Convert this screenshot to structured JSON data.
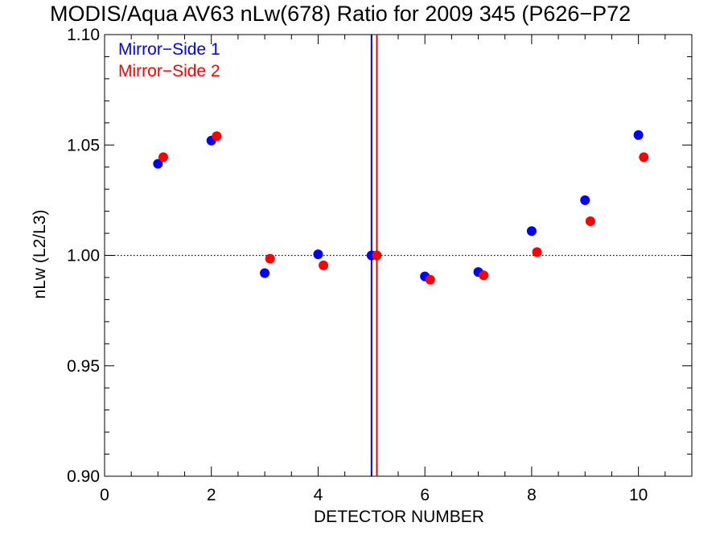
{
  "chart_data": {
    "type": "scatter",
    "title": "MODIS/Aqua AV63 nLw(678) Ratio for 2009 345 (P626−P72",
    "xlabel": "DETECTOR NUMBER",
    "ylabel": "nLw (L2/L3)",
    "xlim": [
      0,
      11
    ],
    "ylim": [
      0.9,
      1.1
    ],
    "xticks": [
      0,
      2,
      4,
      6,
      8,
      10
    ],
    "xtick_labels": [
      "0",
      "2",
      "4",
      "6",
      "8",
      "10"
    ],
    "yticks": [
      0.9,
      0.95,
      1.0,
      1.05,
      1.1
    ],
    "ytick_labels": [
      "0.90",
      "0.95",
      "1.00",
      "1.05",
      "1.10"
    ],
    "reference_line": {
      "y": 1.0,
      "style": "dotted",
      "color": "#000000"
    },
    "vertical_lines": [
      {
        "x": 5.0,
        "color": "#0000ff"
      },
      {
        "x": 5.1,
        "color": "#ff0000"
      }
    ],
    "legend_position": "top-left",
    "series": [
      {
        "name": "Mirror−Side 1",
        "color": "#0000ff",
        "x": [
          1,
          2,
          3,
          4,
          5,
          6,
          7,
          8,
          9,
          10
        ],
        "y": [
          1.0415,
          1.052,
          0.992,
          1.0005,
          1.0,
          0.9905,
          0.9925,
          1.011,
          1.025,
          1.0545
        ]
      },
      {
        "name": "Mirror−Side 2",
        "color": "#ff0000",
        "x": [
          1.1,
          2.1,
          3.1,
          4.1,
          5.1,
          6.1,
          7.1,
          8.1,
          9.1,
          10.1
        ],
        "y": [
          1.0445,
          1.054,
          0.9985,
          0.9955,
          1.0,
          0.989,
          0.991,
          1.0015,
          1.0155,
          1.0445
        ]
      }
    ]
  }
}
